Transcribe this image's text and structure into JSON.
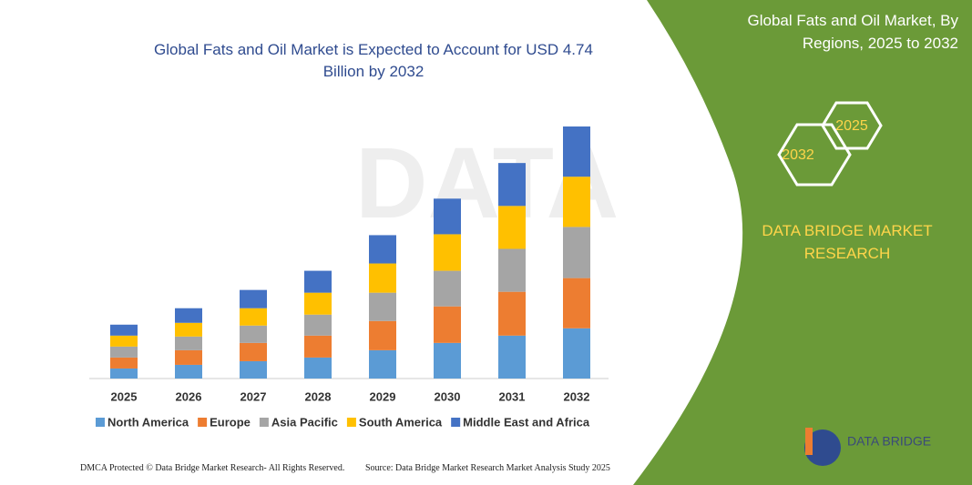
{
  "chart_data": {
    "type": "stacked-bar",
    "title": "Global Fats and Oil Market is Expected to Account for USD 4.74 Billion by 2032",
    "categories": [
      "2025",
      "2026",
      "2027",
      "2028",
      "2029",
      "2030",
      "2031",
      "2032"
    ],
    "series": [
      {
        "name": "North America",
        "color": "#5b9bd5",
        "values": [
          11,
          15,
          19,
          23,
          31,
          39,
          47,
          55
        ]
      },
      {
        "name": "Europe",
        "color": "#ed7d31",
        "values": [
          12,
          16,
          20,
          24,
          32,
          40,
          48,
          55
        ]
      },
      {
        "name": "Asia Pacific",
        "color": "#a5a5a5",
        "values": [
          12,
          15,
          19,
          23,
          31,
          39,
          47,
          56
        ]
      },
      {
        "name": "South America",
        "color": "#ffc000",
        "values": [
          12,
          15,
          19,
          24,
          32,
          40,
          47,
          55
        ]
      },
      {
        "name": "Middle East and Africa",
        "color": "#4472c4",
        "values": [
          12,
          16,
          20,
          24,
          31,
          39,
          47,
          55
        ]
      }
    ]
  },
  "panel": {
    "title": "Global Fats and Oil Market, By Regions, 2025 to 2032",
    "hex_back": "2025",
    "hex_front": "2032",
    "brand": "DATA BRIDGE MARKET RESEARCH"
  },
  "logo": "DATA BRIDGE",
  "footer": {
    "left": "DMCA Protected © Data Bridge Market Research-  All Rights Reserved.",
    "right": "Source: Data Bridge Market Research  Market Analysis Study 2025"
  }
}
